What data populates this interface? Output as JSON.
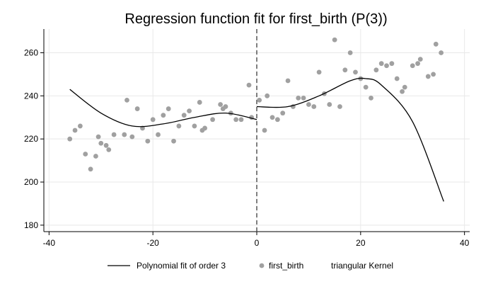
{
  "chart_data": {
    "type": "scatter",
    "title": "Regression function fit for first_birth (P(3))",
    "xlabel": "",
    "ylabel": "",
    "xlim": [
      -41,
      41
    ],
    "ylim": [
      177,
      271
    ],
    "xticks": [
      -40,
      -20,
      0,
      20,
      40
    ],
    "yticks": [
      180,
      200,
      220,
      240,
      260
    ],
    "grid": true,
    "cutoff": 0,
    "legend_position": "bottom",
    "legend": [
      "Polynomial fit of order 3",
      "first_birth",
      "triangular Kernel"
    ],
    "colors": {
      "points": "#a0a0a0",
      "line": "#000000",
      "grid": "#e8e8e8",
      "cutoff": "#555555"
    },
    "scatter": [
      [
        -36,
        220
      ],
      [
        -35,
        224
      ],
      [
        -34,
        226
      ],
      [
        -33,
        213
      ],
      [
        -32,
        206
      ],
      [
        -31,
        212
      ],
      [
        -30.5,
        221
      ],
      [
        -30,
        218
      ],
      [
        -29,
        217
      ],
      [
        -28.5,
        215
      ],
      [
        -27.5,
        222
      ],
      [
        -25.5,
        222
      ],
      [
        -25,
        238
      ],
      [
        -24,
        221
      ],
      [
        -23,
        234
      ],
      [
        -22,
        225
      ],
      [
        -21,
        219
      ],
      [
        -20,
        229
      ],
      [
        -19,
        222
      ],
      [
        -18,
        231
      ],
      [
        -17,
        234
      ],
      [
        -16,
        219
      ],
      [
        -15,
        226
      ],
      [
        -14,
        231
      ],
      [
        -13,
        233
      ],
      [
        -12,
        226
      ],
      [
        -11,
        237
      ],
      [
        -10.5,
        224
      ],
      [
        -10,
        225
      ],
      [
        -8.5,
        229
      ],
      [
        -7,
        236
      ],
      [
        -6.5,
        234
      ],
      [
        -6,
        235
      ],
      [
        -5,
        232
      ],
      [
        -4,
        229
      ],
      [
        -3,
        229
      ],
      [
        -1.5,
        245
      ],
      [
        -1,
        230
      ],
      [
        0.5,
        238
      ],
      [
        1.5,
        224
      ],
      [
        2,
        240
      ],
      [
        3,
        230
      ],
      [
        4,
        229
      ],
      [
        5,
        232
      ],
      [
        6,
        247
      ],
      [
        7,
        235
      ],
      [
        8,
        239
      ],
      [
        9,
        239
      ],
      [
        10,
        236
      ],
      [
        11,
        235
      ],
      [
        12,
        251
      ],
      [
        13,
        241
      ],
      [
        14,
        236
      ],
      [
        15,
        266
      ],
      [
        16,
        235
      ],
      [
        17,
        252
      ],
      [
        18,
        260
      ],
      [
        19,
        251
      ],
      [
        20,
        248
      ],
      [
        21,
        244
      ],
      [
        22,
        239
      ],
      [
        23,
        252
      ],
      [
        24,
        255
      ],
      [
        25,
        254
      ],
      [
        26,
        255
      ],
      [
        27,
        248
      ],
      [
        28,
        242
      ],
      [
        28.5,
        244
      ],
      [
        30,
        254
      ],
      [
        31,
        255
      ],
      [
        31.5,
        257
      ],
      [
        33,
        249
      ],
      [
        34,
        250
      ],
      [
        34.5,
        264
      ],
      [
        35.5,
        260
      ]
    ],
    "fit_left": {
      "x_range": [
        -36,
        0
      ],
      "curve": [
        [
          -36,
          243
        ],
        [
          -30,
          232
        ],
        [
          -24,
          226
        ],
        [
          -18,
          227
        ],
        [
          -12,
          230
        ],
        [
          -6,
          232
        ],
        [
          0,
          229
        ]
      ]
    },
    "fit_right": {
      "x_range": [
        0,
        36
      ],
      "curve": [
        [
          0,
          235
        ],
        [
          6,
          235
        ],
        [
          12,
          240
        ],
        [
          18,
          247
        ],
        [
          21,
          248
        ],
        [
          24,
          245
        ],
        [
          30,
          228
        ],
        [
          36,
          191
        ]
      ]
    }
  }
}
